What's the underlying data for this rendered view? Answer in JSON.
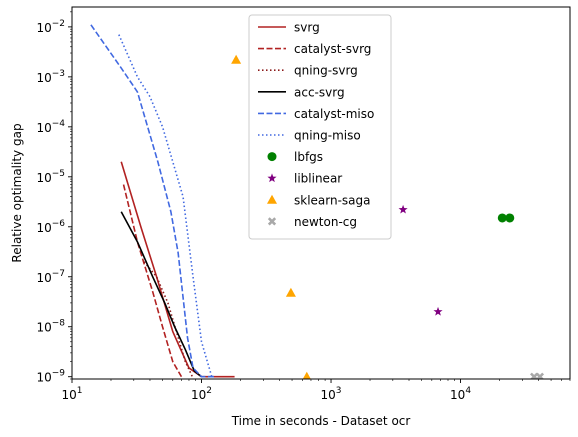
{
  "chart_data": {
    "type": "line",
    "title": "",
    "xlabel": "Time in seconds - Dataset ocr",
    "ylabel": "Relative optimality gap",
    "xscale": "log",
    "yscale": "log",
    "xlim": [
      10,
      70000
    ],
    "ylim": [
      9e-10,
      0.025
    ],
    "x_ticks": [
      {
        "value": 10,
        "base": "10",
        "exp": "1"
      },
      {
        "value": 100,
        "base": "10",
        "exp": "2"
      },
      {
        "value": 1000,
        "base": "10",
        "exp": "3"
      },
      {
        "value": 10000,
        "base": "10",
        "exp": "4"
      }
    ],
    "y_ticks": [
      {
        "value": 1e-09,
        "base": "10",
        "exp": "−9"
      },
      {
        "value": 1e-08,
        "base": "10",
        "exp": "−8"
      },
      {
        "value": 1e-07,
        "base": "10",
        "exp": "−7"
      },
      {
        "value": 1e-06,
        "base": "10",
        "exp": "−6"
      },
      {
        "value": 1e-05,
        "base": "10",
        "exp": "−5"
      },
      {
        "value": 0.0001,
        "base": "10",
        "exp": "−4"
      },
      {
        "value": 0.001,
        "base": "10",
        "exp": "−3"
      },
      {
        "value": 0.01,
        "base": "10",
        "exp": "−2"
      }
    ],
    "grid": false,
    "legend_position": "top-center",
    "series": [
      {
        "name": "svrg",
        "kind": "line",
        "color": "#b22222",
        "dash": "solid",
        "x": [
          24,
          34,
          45,
          60,
          80,
          100,
          140,
          180
        ],
        "y": [
          2e-05,
          1e-06,
          1e-07,
          8e-09,
          1.5e-09,
          1e-09,
          1e-09,
          1e-09
        ]
      },
      {
        "name": "catalyst-svrg",
        "kind": "line",
        "color": "#b22222",
        "dash": "dashed",
        "x": [
          25,
          32,
          42,
          50,
          60,
          70
        ],
        "y": [
          7e-06,
          5e-07,
          5e-08,
          1e-08,
          2e-09,
          1e-09
        ]
      },
      {
        "name": "qning-svrg",
        "kind": "line",
        "color": "#8b1a1a",
        "dash": "dotted",
        "x": [
          36,
          45,
          55,
          65,
          75,
          85
        ],
        "y": [
          2e-07,
          1e-07,
          3e-08,
          7e-09,
          2e-09,
          1e-09
        ]
      },
      {
        "name": "acc-svrg",
        "kind": "line",
        "color": "#000000",
        "dash": "solid",
        "x": [
          24,
          32,
          42,
          52,
          62,
          75,
          88,
          100
        ],
        "y": [
          2e-06,
          5e-07,
          1e-07,
          3e-08,
          1e-08,
          3.5e-09,
          1.3e-09,
          1e-09
        ]
      },
      {
        "name": "catalyst-miso",
        "kind": "line",
        "color": "#4169e1",
        "dash": "dashed",
        "x": [
          14,
          24,
          32,
          46,
          58,
          66,
          78,
          86,
          100,
          130
        ],
        "y": [
          0.011,
          0.0015,
          0.0005,
          2e-05,
          2e-06,
          3e-07,
          6e-09,
          1.5e-09,
          1e-09,
          1e-09
        ]
      },
      {
        "name": "qning-miso",
        "kind": "line",
        "color": "#4169e1",
        "dash": "dotted",
        "x": [
          23,
          32,
          40,
          50,
          60,
          72,
          86,
          100,
          120
        ],
        "y": [
          0.007,
          0.001,
          0.0004,
          0.0001,
          2e-05,
          4e-06,
          1e-07,
          5e-09,
          1e-09
        ]
      },
      {
        "name": "lbfgs",
        "kind": "marker",
        "marker": "circle",
        "color": "#008000",
        "x": [
          21000,
          24000
        ],
        "y": [
          1.5e-06,
          1.5e-06
        ]
      },
      {
        "name": "liblinear",
        "kind": "marker",
        "marker": "star",
        "color": "#800080",
        "x": [
          3600,
          6700
        ],
        "y": [
          2.2e-06,
          2e-08
        ]
      },
      {
        "name": "sklearn-saga",
        "kind": "marker",
        "marker": "triangle",
        "color": "#ffa500",
        "x": [
          185,
          490,
          650
        ],
        "y": [
          0.0022,
          4.8e-08,
          1e-09
        ]
      },
      {
        "name": "newton-cg",
        "kind": "marker",
        "marker": "x",
        "color": "#a9a9a9",
        "x": [
          37000,
          41000
        ],
        "y": [
          1e-09,
          1e-09
        ]
      }
    ]
  }
}
